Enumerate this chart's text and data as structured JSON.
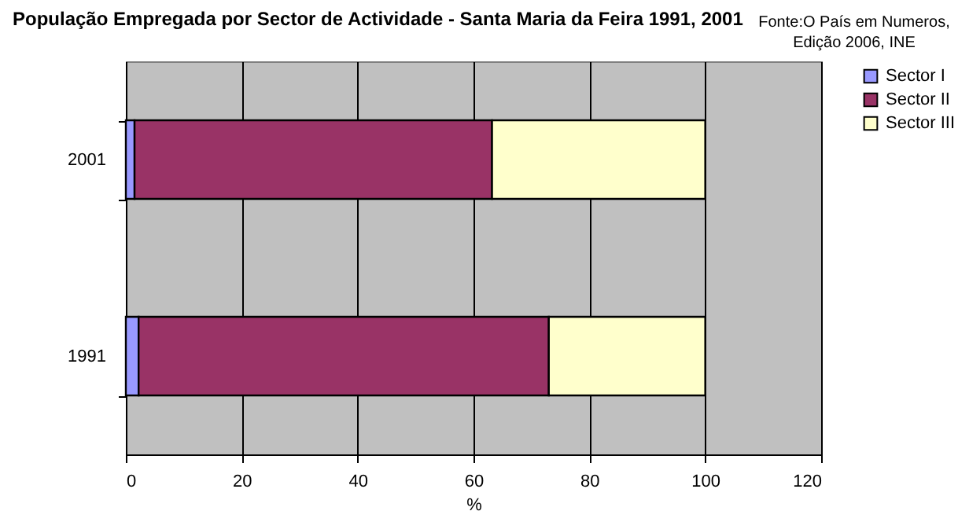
{
  "chart_data": {
    "type": "bar",
    "orientation": "horizontal",
    "stacked": true,
    "title": "População Empregada por Sector de Actividade - Santa Maria da Feira 1991, 2001",
    "annotations": [
      "Fonte:O País em Numeros, Edição 2006, INE"
    ],
    "xlabel": "%",
    "categories": [
      "2001",
      "1991"
    ],
    "series": [
      {
        "name": "Sector I",
        "color": "#9999ff",
        "values": [
          1.5,
          2.2
        ]
      },
      {
        "name": "Sector II",
        "color": "#993366",
        "values": [
          61.7,
          70.8
        ]
      },
      {
        "name": "Sector III",
        "color": "#ffffcc",
        "values": [
          36.8,
          27.0
        ]
      }
    ],
    "xlim": [
      0,
      120
    ],
    "xticks": [
      0,
      20,
      40,
      60,
      80,
      100,
      120
    ],
    "grid": "x",
    "legend": "right"
  }
}
